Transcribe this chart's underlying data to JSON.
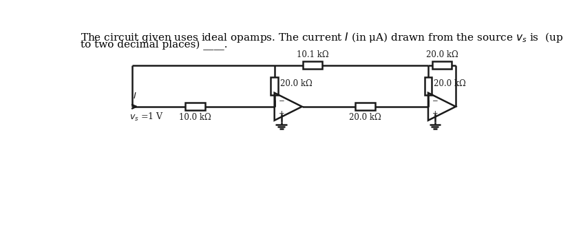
{
  "title_line1": "The circuit given uses ideal opamps. The current $I$ (in μA) drawn from the source $v_s$ is  (up",
  "title_line2": "to two decimal places) ____.",
  "bg_color": "#ffffff",
  "line_color": "#1a1a1a",
  "R1_label": "10.1 kΩ",
  "R2_label": "20.0 kΩ",
  "R3_label": "20.0 kΩ",
  "R4_label": "10.0 kΩ",
  "R5_label": "20.0 kΩ",
  "R6_label": "20.0 kΩ",
  "vs_label": "$v_s$ =1 V",
  "I_label": "$I$",
  "font_size_text": 11,
  "font_size_label": 8.5
}
